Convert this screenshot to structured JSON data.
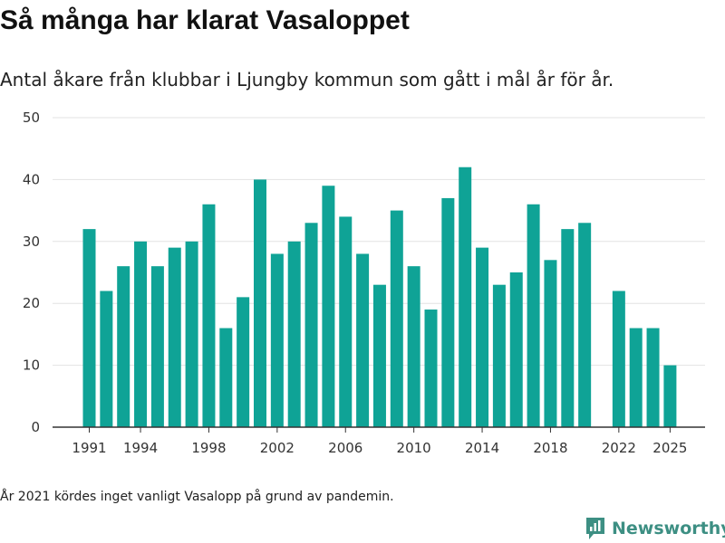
{
  "header": {
    "title": "Så många har klarat Vasaloppet",
    "subtitle": "Antal åkare från klubbar i Ljungby kommun som gått i mål år för år."
  },
  "footnote": "År 2021 kördes inget vanligt Vasalopp på grund av pandemin.",
  "brand": {
    "name": "Newsworthy",
    "icon": "newsworthy-logo-icon",
    "color": "#3d8f83"
  },
  "colors": {
    "bar": "#0fa396",
    "grid": "#e3e3e3",
    "axis": "#333333"
  },
  "chart_data": {
    "type": "bar",
    "title": "Så många har klarat Vasaloppet",
    "xlabel": "",
    "ylabel": "",
    "ylim": [
      0,
      50
    ],
    "yticks": [
      0,
      10,
      20,
      30,
      40,
      50
    ],
    "xticks": [
      1991,
      1994,
      1998,
      2002,
      2006,
      2010,
      2014,
      2018,
      2022,
      2025
    ],
    "grid": true,
    "categories": [
      1991,
      1992,
      1993,
      1994,
      1995,
      1996,
      1997,
      1998,
      1999,
      2000,
      2001,
      2002,
      2003,
      2004,
      2005,
      2006,
      2007,
      2008,
      2009,
      2010,
      2011,
      2012,
      2013,
      2014,
      2015,
      2016,
      2017,
      2018,
      2019,
      2020,
      2021,
      2022,
      2023,
      2024,
      2025
    ],
    "values": [
      32,
      22,
      26,
      30,
      26,
      29,
      30,
      36,
      16,
      21,
      40,
      28,
      30,
      33,
      39,
      34,
      28,
      23,
      35,
      26,
      19,
      37,
      42,
      29,
      23,
      25,
      36,
      27,
      32,
      33,
      null,
      22,
      16,
      16,
      10
    ]
  }
}
